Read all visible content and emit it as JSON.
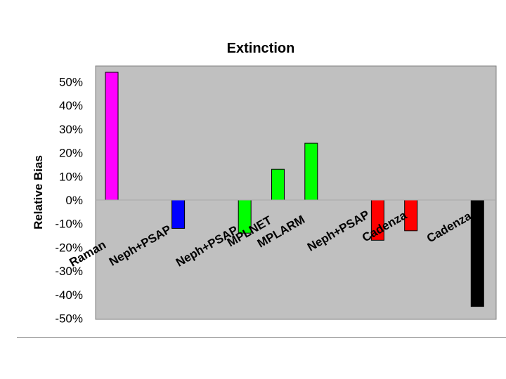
{
  "chart_data": {
    "type": "bar",
    "title": "Extinction",
    "xlabel": "",
    "ylabel": "Relative Bias",
    "ylim": [
      -0.5,
      0.55
    ],
    "yticks": [
      0.5,
      0.4,
      0.3,
      0.2,
      0.1,
      0,
      -0.1,
      -0.2,
      -0.3,
      -0.4,
      -0.5
    ],
    "ytick_labels": [
      "50%",
      "40%",
      "30%",
      "20%",
      "10%",
      "0%",
      "-10%",
      "-20%",
      "-30%",
      "-40%",
      "-50%"
    ],
    "grid": false,
    "plot_background": "#c0c0c0",
    "categories": [
      "Raman",
      "Neph+PSAP",
      "Neph+PSAP",
      "MPLNET",
      "MPLARM",
      "Neph+PSAP",
      "Cadenza",
      "Cadenza"
    ],
    "bars": [
      {
        "slot": 0,
        "value": 0.54,
        "color": "#ff00ff"
      },
      {
        "slot": 2,
        "value": -0.12,
        "color": "#0000ff"
      },
      {
        "slot": 4,
        "value": -0.14,
        "color": "#00ff00"
      },
      {
        "slot": 5,
        "value": 0.13,
        "color": "#00ff00"
      },
      {
        "slot": 6,
        "value": 0.24,
        "color": "#00ff00"
      },
      {
        "slot": 8,
        "value": -0.17,
        "color": "#ff0000"
      },
      {
        "slot": 9,
        "value": -0.13,
        "color": "#ff0000"
      },
      {
        "slot": 11,
        "value": -0.45,
        "color": "#000000"
      }
    ]
  }
}
